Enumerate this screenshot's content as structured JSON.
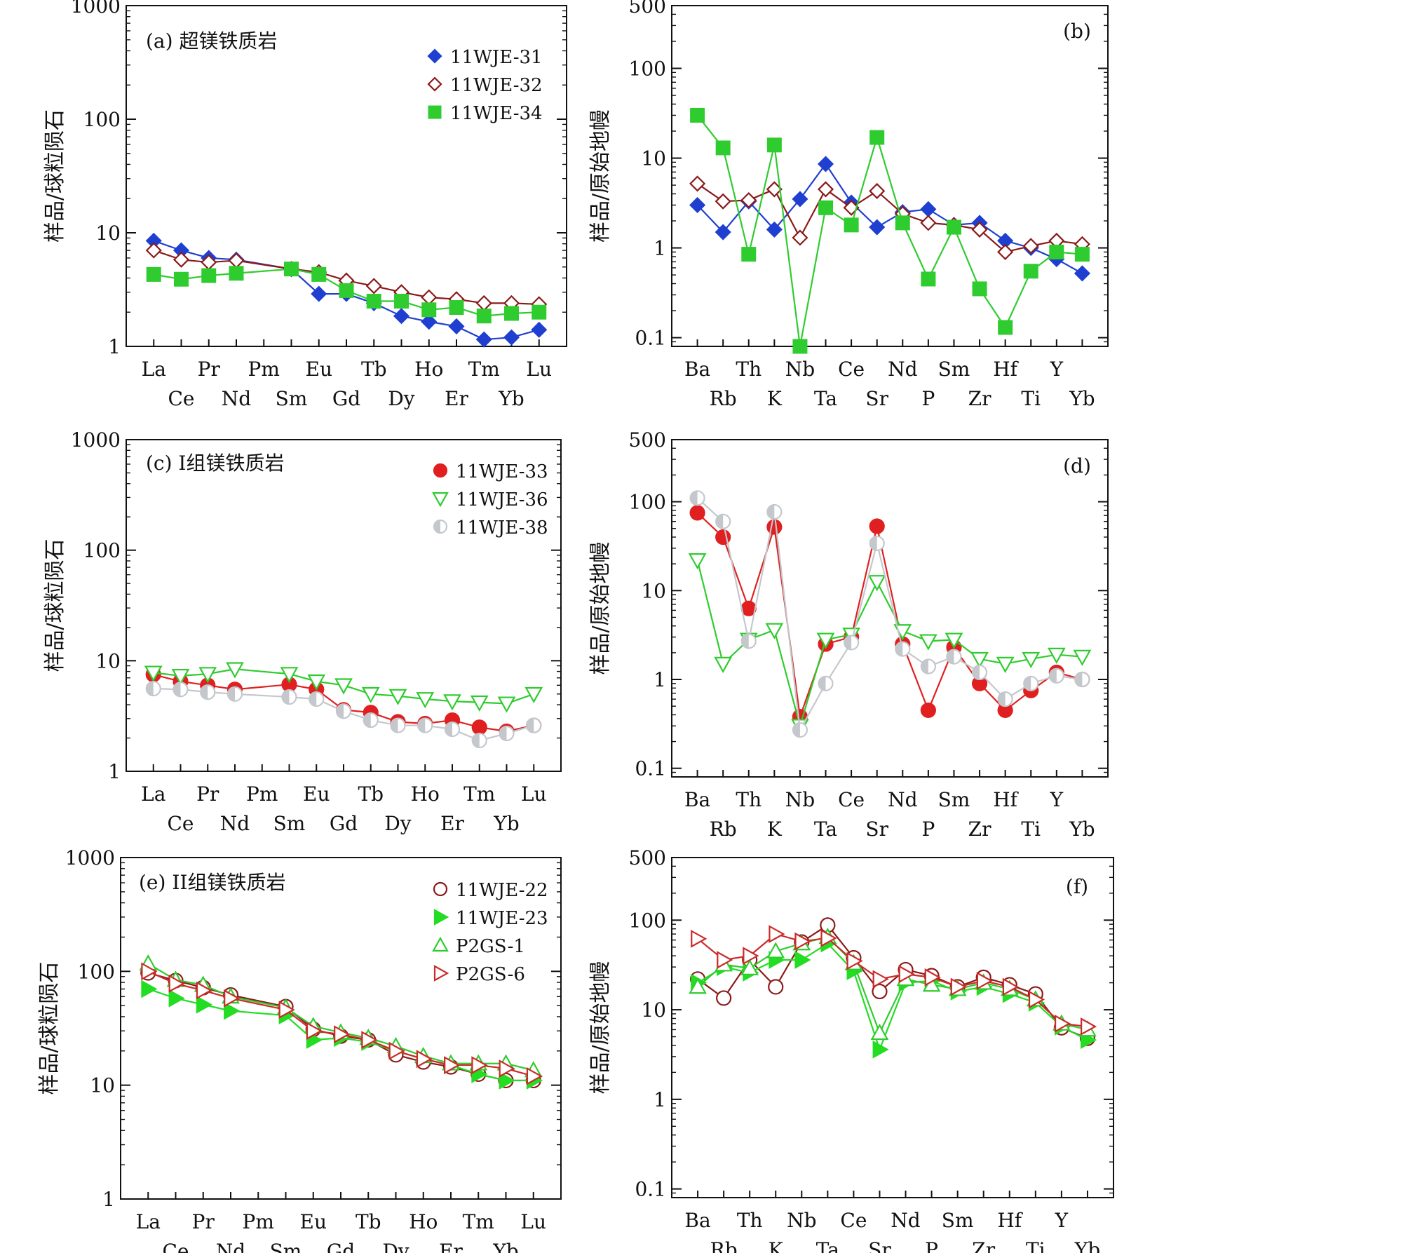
{
  "figure": {
    "colors": {
      "blue": "#1f3fd0",
      "darkred": "#8b1a1a",
      "green": "#2fcc2f",
      "brightgreen": "#22dd22",
      "red": "#e02020",
      "gray": "#c4c7cc"
    }
  },
  "chart_data": [
    {
      "id": "a",
      "type": "line",
      "scale": "log",
      "panel_label": "(a) 超镁铁质岩",
      "ylabel": "样品/球粒陨石",
      "ylim": [
        1,
        1000
      ],
      "ytick_labels": [
        "1",
        "10",
        "100",
        "1000"
      ],
      "categories": [
        "La",
        "Ce",
        "Pr",
        "Nd",
        "Pm",
        "Sm",
        "Eu",
        "Gd",
        "Tb",
        "Dy",
        "Ho",
        "Er",
        "Tm",
        "Yb",
        "Lu"
      ],
      "series": [
        {
          "name": "11WJE-31",
          "marker": "diamond-filled",
          "color": "#1f3fd0",
          "values": [
            8.5,
            7.0,
            6.0,
            5.8,
            null,
            4.8,
            2.9,
            2.9,
            2.4,
            1.85,
            1.65,
            1.5,
            1.15,
            1.2,
            1.4
          ]
        },
        {
          "name": "11WJE-32",
          "marker": "diamond-open",
          "color": "#8b1a1a",
          "values": [
            7.0,
            5.8,
            5.5,
            5.7,
            null,
            4.8,
            4.5,
            3.8,
            3.4,
            3.0,
            2.7,
            2.6,
            2.4,
            2.4,
            2.35
          ]
        },
        {
          "name": "11WJE-34",
          "marker": "square-filled",
          "color": "#2fcc2f",
          "values": [
            4.3,
            3.9,
            4.2,
            4.4,
            null,
            4.8,
            4.3,
            3.1,
            2.5,
            2.5,
            2.1,
            2.2,
            1.85,
            1.95,
            2.0
          ]
        }
      ]
    },
    {
      "id": "b",
      "type": "line",
      "scale": "log",
      "panel_label": "(b)",
      "ylabel": "样品/原始地幔",
      "ylim": [
        0.08,
        500
      ],
      "ytick_values": [
        0.1,
        1,
        10,
        100,
        500
      ],
      "ytick_labels": [
        "0.1",
        "1",
        "10",
        "100",
        "500"
      ],
      "categories": [
        "Ba",
        "Rb",
        "Th",
        "K",
        "Nb",
        "Ta",
        "Ce",
        "Sr",
        "Nd",
        "P",
        "Sm",
        "Zr",
        "Hf",
        "Ti",
        "Y",
        "Yb"
      ],
      "series": [
        {
          "name": "11WJE-31",
          "marker": "diamond-filled",
          "color": "#1f3fd0",
          "values": [
            3.0,
            1.5,
            3.3,
            1.6,
            3.5,
            8.6,
            3.2,
            1.7,
            2.5,
            2.7,
            1.8,
            1.9,
            1.2,
            1.0,
            0.75,
            0.52
          ]
        },
        {
          "name": "11WJE-32",
          "marker": "diamond-open",
          "color": "#8b1a1a",
          "values": [
            5.2,
            3.3,
            3.4,
            4.5,
            1.3,
            4.5,
            2.8,
            4.3,
            2.4,
            1.9,
            1.8,
            1.6,
            0.9,
            1.05,
            1.2,
            1.1
          ]
        },
        {
          "name": "11WJE-34",
          "marker": "square-filled",
          "color": "#2fcc2f",
          "values": [
            30,
            13,
            0.85,
            14,
            0.08,
            2.8,
            1.8,
            17,
            1.9,
            0.45,
            1.7,
            0.35,
            0.13,
            0.55,
            0.9,
            0.85
          ]
        }
      ]
    },
    {
      "id": "c",
      "type": "line",
      "scale": "log",
      "panel_label": "(c) I组镁铁质岩",
      "ylabel": "样品/球粒陨石",
      "ylim": [
        1,
        1000
      ],
      "ytick_labels": [
        "1",
        "10",
        "100",
        "1000"
      ],
      "categories": [
        "La",
        "Ce",
        "Pr",
        "Nd",
        "Pm",
        "Sm",
        "Eu",
        "Gd",
        "Tb",
        "Dy",
        "Ho",
        "Er",
        "Tm",
        "Yb",
        "Lu"
      ],
      "series": [
        {
          "name": "11WJE-33",
          "marker": "circle-filled",
          "color": "#e02020",
          "values": [
            7.5,
            6.5,
            6.0,
            5.5,
            null,
            6.1,
            5.5,
            3.6,
            3.4,
            2.8,
            2.7,
            2.9,
            2.5,
            2.3,
            2.6
          ]
        },
        {
          "name": "11WJE-36",
          "marker": "triangle-down-open",
          "color": "#2fcc2f",
          "values": [
            7.8,
            7.3,
            7.6,
            8.4,
            null,
            7.6,
            6.5,
            6.0,
            5.0,
            4.8,
            4.5,
            4.3,
            4.2,
            4.1,
            5.0
          ]
        },
        {
          "name": "11WJE-38",
          "marker": "circle-half",
          "color": "#c4c7cc",
          "values": [
            5.6,
            5.5,
            5.2,
            5.0,
            null,
            4.7,
            4.5,
            3.5,
            2.9,
            2.6,
            2.6,
            2.4,
            1.9,
            2.2,
            2.6
          ]
        }
      ]
    },
    {
      "id": "d",
      "type": "line",
      "scale": "log",
      "panel_label": "(d)",
      "ylabel": "样品/原始地幔",
      "ylim": [
        0.08,
        500
      ],
      "ytick_values": [
        0.1,
        1,
        10,
        100,
        500
      ],
      "ytick_labels": [
        "0.1",
        "1",
        "10",
        "100",
        "500"
      ],
      "categories": [
        "Ba",
        "Rb",
        "Th",
        "K",
        "Nb",
        "Ta",
        "Ce",
        "Sr",
        "Nd",
        "P",
        "Sm",
        "Zr",
        "Hf",
        "Ti",
        "Y",
        "Yb"
      ],
      "series": [
        {
          "name": "11WJE-33",
          "marker": "circle-filled",
          "color": "#e02020",
          "values": [
            75,
            40,
            6.3,
            52,
            0.38,
            2.5,
            3.0,
            53,
            2.5,
            0.45,
            2.3,
            0.9,
            0.45,
            0.75,
            1.2,
            1.0
          ]
        },
        {
          "name": "11WJE-36",
          "marker": "triangle-down-open",
          "color": "#2fcc2f",
          "values": [
            22,
            1.5,
            2.8,
            3.6,
            0.3,
            2.8,
            3.2,
            12.5,
            3.5,
            2.7,
            2.8,
            1.7,
            1.5,
            1.7,
            1.9,
            1.8
          ]
        },
        {
          "name": "11WJE-38",
          "marker": "circle-half",
          "color": "#c4c7cc",
          "values": [
            110,
            60,
            2.7,
            77,
            0.27,
            0.9,
            2.6,
            34,
            2.2,
            1.4,
            1.8,
            1.2,
            0.6,
            0.9,
            1.1,
            1.0
          ]
        }
      ]
    },
    {
      "id": "e",
      "type": "line",
      "scale": "log",
      "panel_label": "(e) II组镁铁质岩",
      "ylabel": "样品/球粒陨石",
      "ylim": [
        1,
        1000
      ],
      "ytick_labels": [
        "1",
        "10",
        "100",
        "1000"
      ],
      "categories": [
        "La",
        "Ce",
        "Pr",
        "Nd",
        "Pm",
        "Sm",
        "Eu",
        "Gd",
        "Tb",
        "Dy",
        "Ho",
        "Er",
        "Tm",
        "Yb",
        "Lu"
      ],
      "series": [
        {
          "name": "11WJE-22",
          "marker": "circle-open",
          "color": "#8b1a1a",
          "values": [
            97,
            83,
            72,
            62,
            null,
            49,
            31,
            27,
            25,
            18.5,
            16,
            14.5,
            12.5,
            11,
            11
          ]
        },
        {
          "name": "11WJE-23",
          "marker": "triangle-right-filled",
          "color": "#22dd22",
          "values": [
            70,
            58,
            51,
            45,
            null,
            41,
            25,
            26,
            24,
            20,
            17,
            15,
            12.5,
            11,
            11
          ]
        },
        {
          "name": "P2GS-1",
          "marker": "triangle-up-open",
          "color": "#2fcc2f",
          "values": [
            117,
            84,
            76,
            60,
            null,
            48,
            33,
            29,
            26,
            22,
            18,
            15.5,
            15.5,
            15.5,
            13.5
          ]
        },
        {
          "name": "P2GS-6",
          "marker": "triangle-right-open",
          "color": "#cc2a2a",
          "values": [
            100,
            78,
            68,
            58,
            null,
            46,
            30,
            28,
            25,
            20,
            17,
            15,
            15,
            14,
            12
          ]
        }
      ]
    },
    {
      "id": "f",
      "type": "line",
      "scale": "log",
      "panel_label": "(f)",
      "ylabel": "样品/原始地幔",
      "ylim": [
        0.08,
        500
      ],
      "ytick_values": [
        0.1,
        1,
        10,
        100,
        500
      ],
      "ytick_labels": [
        "0.1",
        "1",
        "10",
        "100",
        "500"
      ],
      "categories": [
        "Ba",
        "Rb",
        "Th",
        "K",
        "Nb",
        "Ta",
        "Ce",
        "Sr",
        "Nd",
        "P",
        "Sm",
        "Zr",
        "Hf",
        "Ti",
        "Y",
        "Yb"
      ],
      "series": [
        {
          "name": "11WJE-22",
          "marker": "circle-open",
          "color": "#8b1a1a",
          "values": [
            22,
            13.5,
            36,
            18,
            57,
            88,
            38,
            16,
            28,
            24,
            18,
            23,
            19,
            15,
            6.3,
            4.8
          ]
        },
        {
          "name": "11WJE-23",
          "marker": "triangle-right-filled",
          "color": "#22dd22",
          "values": [
            20,
            30,
            26,
            36,
            36,
            55,
            27,
            3.6,
            20,
            21,
            16,
            18,
            15,
            12,
            6.5,
            4.6
          ]
        },
        {
          "name": "P2GS-1",
          "marker": "triangle-up-open",
          "color": "#2fcc2f",
          "values": [
            18,
            32,
            29,
            45,
            55,
            65,
            33,
            5.5,
            22,
            19,
            17,
            20,
            17,
            13,
            7,
            6
          ]
        },
        {
          "name": "P2GS-6",
          "marker": "triangle-right-open",
          "color": "#cc2a2a",
          "values": [
            62,
            36,
            40,
            70,
            58,
            63,
            35,
            22,
            25,
            23,
            18,
            21,
            18,
            13,
            7,
            6.5
          ]
        }
      ]
    }
  ]
}
